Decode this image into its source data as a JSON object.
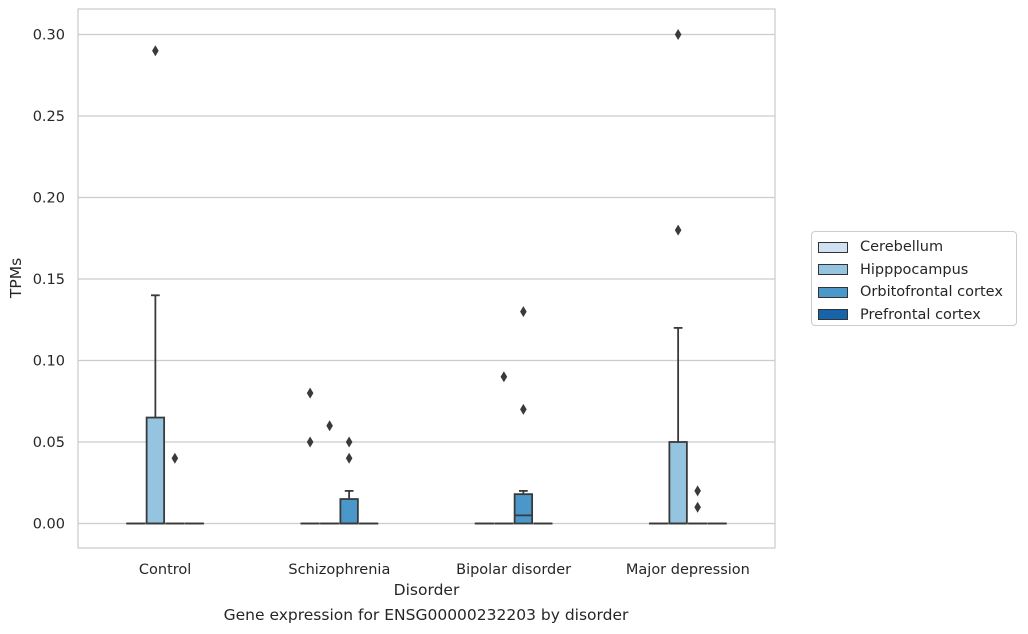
{
  "caption": "Gene expression for ENSG00000232203 by disorder",
  "chart_data": {
    "type": "box",
    "xlabel": "Disorder",
    "ylabel": "TPMs",
    "ylim": [
      -0.015,
      0.315
    ],
    "yticks": [
      0.0,
      0.05,
      0.1,
      0.15,
      0.2,
      0.25,
      0.3
    ],
    "ytick_labels": [
      "0.00",
      "0.05",
      "0.10",
      "0.15",
      "0.20",
      "0.25",
      "0.30"
    ],
    "grid": true,
    "legend_position": "right",
    "categories": [
      "Control",
      "Schizophrenia",
      "Bipolar disorder",
      "Major depression"
    ],
    "series": [
      {
        "name": "Cerebellum",
        "color": "#d0e1f2",
        "boxes": [
          {
            "min": 0,
            "q1": 0,
            "median": 0,
            "q3": 0,
            "max": 0,
            "outliers": []
          },
          {
            "min": 0,
            "q1": 0,
            "median": 0,
            "q3": 0,
            "max": 0,
            "outliers": [
              0.08,
              0.05
            ]
          },
          {
            "min": 0,
            "q1": 0,
            "median": 0,
            "q3": 0,
            "max": 0,
            "outliers": []
          },
          {
            "min": 0,
            "q1": 0,
            "median": 0,
            "q3": 0,
            "max": 0,
            "outliers": []
          }
        ]
      },
      {
        "name": "Hipppocampus",
        "color": "#94c4df",
        "boxes": [
          {
            "min": 0,
            "q1": 0,
            "median": 0,
            "q3": 0.065,
            "max": 0.14,
            "outliers": [
              0.29
            ]
          },
          {
            "min": 0,
            "q1": 0,
            "median": 0,
            "q3": 0,
            "max": 0,
            "outliers": [
              0.06
            ]
          },
          {
            "min": 0,
            "q1": 0,
            "median": 0,
            "q3": 0,
            "max": 0,
            "outliers": [
              0.09
            ]
          },
          {
            "min": 0,
            "q1": 0,
            "median": 0,
            "q3": 0.05,
            "max": 0.12,
            "outliers": [
              0.3,
              0.18
            ]
          }
        ]
      },
      {
        "name": "Orbitofrontal cortex",
        "color": "#4a98c9",
        "boxes": [
          {
            "min": 0,
            "q1": 0,
            "median": 0,
            "q3": 0,
            "max": 0,
            "outliers": [
              0.04
            ]
          },
          {
            "min": 0,
            "q1": 0,
            "median": 0,
            "q3": 0.015,
            "max": 0.02,
            "outliers": [
              0.05,
              0.04
            ]
          },
          {
            "min": 0,
            "q1": 0,
            "median": 0.005,
            "q3": 0.018,
            "max": 0.02,
            "outliers": [
              0.13,
              0.07
            ]
          },
          {
            "min": 0,
            "q1": 0,
            "median": 0,
            "q3": 0,
            "max": 0,
            "outliers": [
              0.02,
              0.01
            ]
          }
        ]
      },
      {
        "name": "Prefrontal cortex",
        "color": "#1764ab",
        "boxes": [
          {
            "min": 0,
            "q1": 0,
            "median": 0,
            "q3": 0,
            "max": 0,
            "outliers": []
          },
          {
            "min": 0,
            "q1": 0,
            "median": 0,
            "q3": 0,
            "max": 0,
            "outliers": []
          },
          {
            "min": 0,
            "q1": 0,
            "median": 0,
            "q3": 0,
            "max": 0,
            "outliers": []
          },
          {
            "min": 0,
            "q1": 0,
            "median": 0,
            "q3": 0,
            "max": 0,
            "outliers": []
          }
        ]
      }
    ]
  }
}
